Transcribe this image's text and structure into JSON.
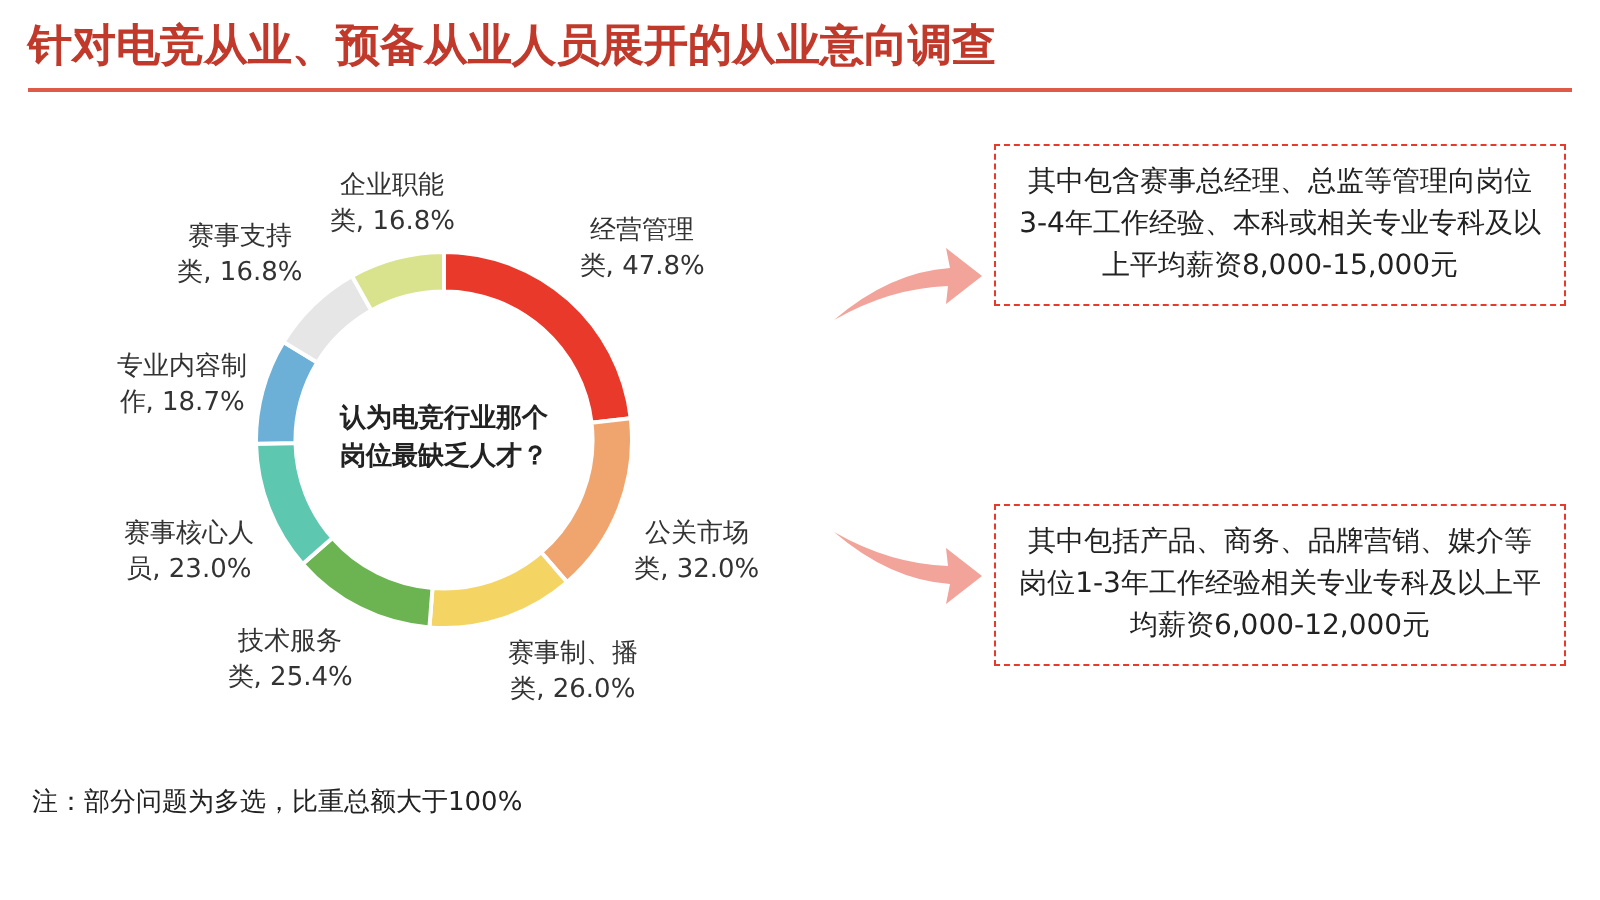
{
  "chart_data": {
    "type": "donut",
    "title": "针对电竞从业、预备从业人员展开的从业意向调查",
    "categories": [
      "经营管理类",
      "公关市场类",
      "赛事制、播类",
      "技术服务类",
      "赛事核心人员",
      "专业内容制作",
      "赛事支持类",
      "企业职能类"
    ],
    "values": [
      47.8,
      32.0,
      26.0,
      25.4,
      23.0,
      18.7,
      16.8,
      16.8
    ],
    "value_labels": [
      "47.8%",
      "32.0%",
      "26.0%",
      "25.4%",
      "23.0%",
      "18.7%",
      "16.8%",
      "16.8%"
    ],
    "colors": [
      "#e8392b",
      "#f0a56e",
      "#f4d462",
      "#6cb352",
      "#5ec7b0",
      "#6cb0d8",
      "#e6e6e6",
      "#d9e28c"
    ],
    "legend": false,
    "annotations": [
      "认为电竞行业那个岗位最缺乏人才？",
      "其中包含赛事总经理、总监等管理向岗位3-4年工作经验、本科或相关专业专科及以上平均薪资8,000-15,000元",
      "其中包括产品、商务、品牌营销、媒介等岗位1-3年工作经验相关专业专科及以上平均薪资6,000-12,000元",
      "注：部分问题为多选，比重总额大于100%"
    ]
  }
}
